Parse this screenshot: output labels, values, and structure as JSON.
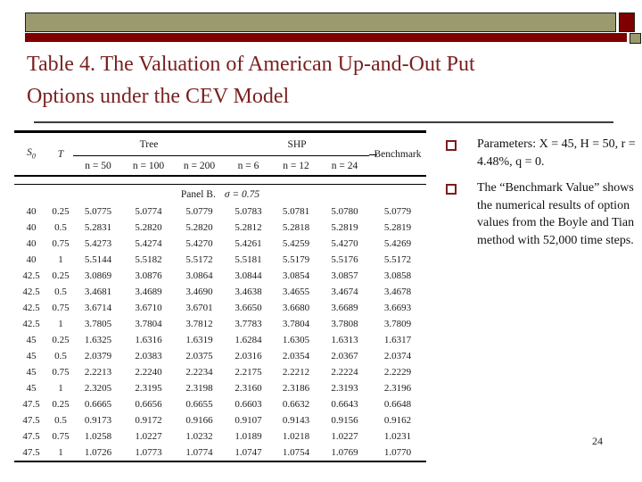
{
  "slide": {
    "title_lines": [
      "Table 4. The Valuation of American Up-and-Out Put",
      "Options under the CEV Model"
    ],
    "page_number": "24"
  },
  "colors": {
    "accent_maroon": "#7a1f1f",
    "bar_olive": "#9a9a6e",
    "bar_dark_red": "#7f0000"
  },
  "bullets": {
    "item1": "Parameters: X = 45, H = 50, r = 4.48%, q = 0.",
    "item2": "The “Benchmark Value” shows the numerical results of option values from the Boyle and Tian method with 52,000 time steps."
  },
  "table": {
    "headers": {
      "s0_base": "S",
      "s0_sub": "0",
      "t": "T",
      "tree": "Tree",
      "shp": "SHP",
      "benchmark": "Benchmark",
      "sub": [
        "n = 50",
        "n = 100",
        "n = 200",
        "n = 6",
        "n = 12",
        "n = 24"
      ]
    },
    "panel_label": "Panel B.",
    "panel_sigma": "σ = 0.75",
    "rows": [
      [
        "40",
        "0.25",
        "5.0775",
        "5.0774",
        "5.0779",
        "5.0783",
        "5.0781",
        "5.0780",
        "5.0779"
      ],
      [
        "40",
        "0.5",
        "5.2831",
        "5.2820",
        "5.2820",
        "5.2812",
        "5.2818",
        "5.2819",
        "5.2819"
      ],
      [
        "40",
        "0.75",
        "5.4273",
        "5.4274",
        "5.4270",
        "5.4261",
        "5.4259",
        "5.4270",
        "5.4269"
      ],
      [
        "40",
        "1",
        "5.5144",
        "5.5182",
        "5.5172",
        "5.5181",
        "5.5179",
        "5.5176",
        "5.5172"
      ],
      [
        "42.5",
        "0.25",
        "3.0869",
        "3.0876",
        "3.0864",
        "3.0844",
        "3.0854",
        "3.0857",
        "3.0858"
      ],
      [
        "42.5",
        "0.5",
        "3.4681",
        "3.4689",
        "3.4690",
        "3.4638",
        "3.4655",
        "3.4674",
        "3.4678"
      ],
      [
        "42.5",
        "0.75",
        "3.6714",
        "3.6710",
        "3.6701",
        "3.6650",
        "3.6680",
        "3.6689",
        "3.6693"
      ],
      [
        "42.5",
        "1",
        "3.7805",
        "3.7804",
        "3.7812",
        "3.7783",
        "3.7804",
        "3.7808",
        "3.7809"
      ],
      [
        "45",
        "0.25",
        "1.6325",
        "1.6316",
        "1.6319",
        "1.6284",
        "1.6305",
        "1.6313",
        "1.6317"
      ],
      [
        "45",
        "0.5",
        "2.0379",
        "2.0383",
        "2.0375",
        "2.0316",
        "2.0354",
        "2.0367",
        "2.0374"
      ],
      [
        "45",
        "0.75",
        "2.2213",
        "2.2240",
        "2.2234",
        "2.2175",
        "2.2212",
        "2.2224",
        "2.2229"
      ],
      [
        "45",
        "1",
        "2.3205",
        "2.3195",
        "2.3198",
        "2.3160",
        "2.3186",
        "2.3193",
        "2.3196"
      ],
      [
        "47.5",
        "0.25",
        "0.6665",
        "0.6656",
        "0.6655",
        "0.6603",
        "0.6632",
        "0.6643",
        "0.6648"
      ],
      [
        "47.5",
        "0.5",
        "0.9173",
        "0.9172",
        "0.9166",
        "0.9107",
        "0.9143",
        "0.9156",
        "0.9162"
      ],
      [
        "47.5",
        "0.75",
        "1.0258",
        "1.0227",
        "1.0232",
        "1.0189",
        "1.0218",
        "1.0227",
        "1.0231"
      ],
      [
        "47.5",
        "1",
        "1.0726",
        "1.0773",
        "1.0774",
        "1.0747",
        "1.0754",
        "1.0769",
        "1.0770"
      ]
    ]
  }
}
